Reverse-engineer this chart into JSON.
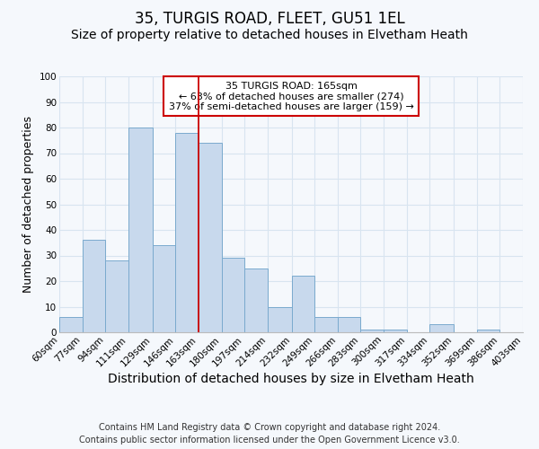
{
  "title1": "35, TURGIS ROAD, FLEET, GU51 1EL",
  "title2": "Size of property relative to detached houses in Elvetham Heath",
  "xlabel": "Distribution of detached houses by size in Elvetham Heath",
  "ylabel": "Number of detached properties",
  "bins": [
    60,
    77,
    94,
    111,
    129,
    146,
    163,
    180,
    197,
    214,
    232,
    249,
    266,
    283,
    300,
    317,
    334,
    352,
    369,
    386,
    403
  ],
  "counts": [
    6,
    36,
    28,
    80,
    34,
    78,
    74,
    29,
    25,
    10,
    22,
    6,
    6,
    1,
    1,
    0,
    3,
    0,
    1,
    0
  ],
  "bar_color": "#c8d9ed",
  "bar_edge_color": "#7aaace",
  "vline_x": 163,
  "vline_color": "#cc0000",
  "ylim": [
    0,
    100
  ],
  "yticks": [
    0,
    10,
    20,
    30,
    40,
    50,
    60,
    70,
    80,
    90,
    100
  ],
  "annotation_title": "35 TURGIS ROAD: 165sqm",
  "annotation_line1": "← 63% of detached houses are smaller (274)",
  "annotation_line2": "37% of semi-detached houses are larger (159) →",
  "annotation_box_color": "#ffffff",
  "annotation_box_edge": "#cc0000",
  "tick_labels": [
    "60sqm",
    "77sqm",
    "94sqm",
    "111sqm",
    "129sqm",
    "146sqm",
    "163sqm",
    "180sqm",
    "197sqm",
    "214sqm",
    "232sqm",
    "249sqm",
    "266sqm",
    "283sqm",
    "300sqm",
    "317sqm",
    "334sqm",
    "352sqm",
    "369sqm",
    "386sqm",
    "403sqm"
  ],
  "footer1": "Contains HM Land Registry data © Crown copyright and database right 2024.",
  "footer2": "Contains public sector information licensed under the Open Government Licence v3.0.",
  "background_color": "#f5f8fc",
  "plot_bg_color": "#f5f8fc",
  "grid_color": "#d8e4f0",
  "title1_fontsize": 12,
  "title2_fontsize": 10,
  "xlabel_fontsize": 10,
  "ylabel_fontsize": 9,
  "tick_fontsize": 7.5,
  "footer_fontsize": 7,
  "ann_fontsize": 8
}
